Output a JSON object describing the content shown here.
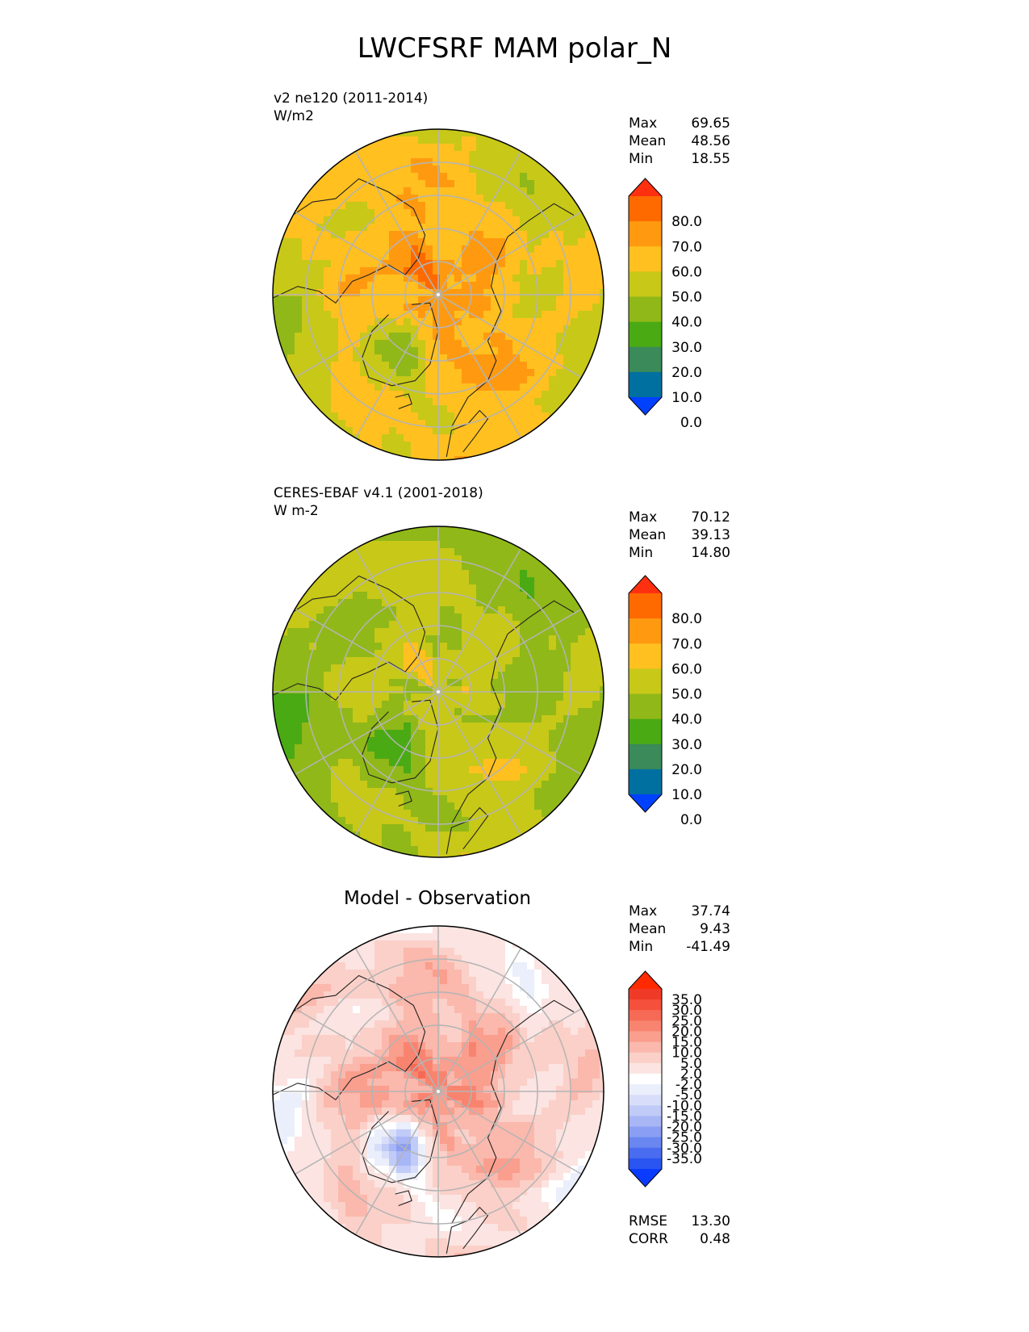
{
  "title": "LWCFSRF MAM polar_N",
  "colors": {
    "abs_levels": [
      "#0040ff",
      "#0070a0",
      "#3a8a5a",
      "#4aaa14",
      "#90b818",
      "#c8c818",
      "#ffc020",
      "#ff9a10",
      "#ff6a00",
      "#ff3010"
    ],
    "diff_levels": [
      "#0a3cff",
      "#2a55f0",
      "#4a6cf0",
      "#6a86f0",
      "#8a9ef4",
      "#a8b6f6",
      "#c0cbf8",
      "#d8def9",
      "#ebeefb",
      "#ffffff",
      "#fbe4e2",
      "#fbd0c8",
      "#fbb8ac",
      "#fa9e8e",
      "#f88470",
      "#f66a55",
      "#f4503c",
      "#f03a28",
      "#ff2a00"
    ],
    "land_outline": "#222222",
    "grid": "#b4b4b4"
  },
  "panels": [
    {
      "id": "test",
      "title_line1": "v2 ne120 (2011-2014)",
      "title_line2": "W/m2",
      "stats": [
        {
          "label": "Max",
          "value": "69.65"
        },
        {
          "label": "Mean",
          "value": "48.56"
        },
        {
          "label": "Min",
          "value": "18.55"
        }
      ],
      "colorbar_ticks": [
        "80.0",
        "70.0",
        "60.0",
        "50.0",
        "40.0",
        "30.0",
        "20.0",
        "10.0",
        "0.0"
      ],
      "field": {
        "base": 48.56,
        "pole_bias": 14,
        "region_bias": [
          10,
          -22,
          6,
          -4
        ]
      }
    },
    {
      "id": "ref",
      "title_line1": "CERES-EBAF v4.1 (2001-2018)",
      "title_line2": "W m-2",
      "stats": [
        {
          "label": "Max",
          "value": "70.12"
        },
        {
          "label": "Mean",
          "value": "39.13"
        },
        {
          "label": "Min",
          "value": "14.80"
        }
      ],
      "colorbar_ticks": [
        "80.0",
        "70.0",
        "60.0",
        "50.0",
        "40.0",
        "30.0",
        "20.0",
        "10.0",
        "0.0"
      ],
      "field": {
        "base": 39.13,
        "pole_bias": 4,
        "region_bias": [
          8,
          -14,
          4,
          -6
        ]
      }
    },
    {
      "id": "diff",
      "title_line1": "Model - Observation",
      "stats": [
        {
          "label": "Max",
          "value": "37.74"
        },
        {
          "label": "Mean",
          "value": "9.43"
        },
        {
          "label": "Min",
          "value": "-41.49"
        }
      ],
      "colorbar_ticks": [
        "35.0",
        "30.0",
        "25.0",
        "20.0",
        "15.0",
        "10.0",
        "5.0",
        "2.0",
        "-2.0",
        "-5.0",
        "-10.0",
        "-15.0",
        "-20.0",
        "-25.0",
        "-30.0",
        "-35.0"
      ],
      "metrics": [
        {
          "label": "RMSE",
          "value": "13.30"
        },
        {
          "label": "CORR",
          "value": "0.48"
        }
      ],
      "field": {
        "base": 9.43,
        "pole_bias": 14,
        "region_bias": [
          2,
          -30,
          2,
          0
        ]
      }
    }
  ],
  "chart_data": [
    {
      "type": "heatmap",
      "projection": "north-polar-stereographic",
      "title": "v2 ne120 (2011-2014)",
      "units": "W/m2",
      "levels": [
        0,
        10,
        20,
        30,
        40,
        50,
        60,
        70,
        80
      ],
      "extend": "both",
      "max": 69.65,
      "mean": 48.56,
      "min": 18.55
    },
    {
      "type": "heatmap",
      "projection": "north-polar-stereographic",
      "title": "CERES-EBAF v4.1 (2001-2018)",
      "units": "W m-2",
      "levels": [
        0,
        10,
        20,
        30,
        40,
        50,
        60,
        70,
        80
      ],
      "extend": "both",
      "max": 70.12,
      "mean": 39.13,
      "min": 14.8
    },
    {
      "type": "heatmap",
      "projection": "north-polar-stereographic",
      "title": "Model - Observation",
      "levels": [
        -35,
        -30,
        -25,
        -20,
        -15,
        -10,
        -5,
        -2,
        2,
        5,
        10,
        15,
        20,
        25,
        30,
        35
      ],
      "extend": "both",
      "max": 37.74,
      "mean": 9.43,
      "min": -41.49,
      "rmse": 13.3,
      "corr": 0.48
    }
  ]
}
